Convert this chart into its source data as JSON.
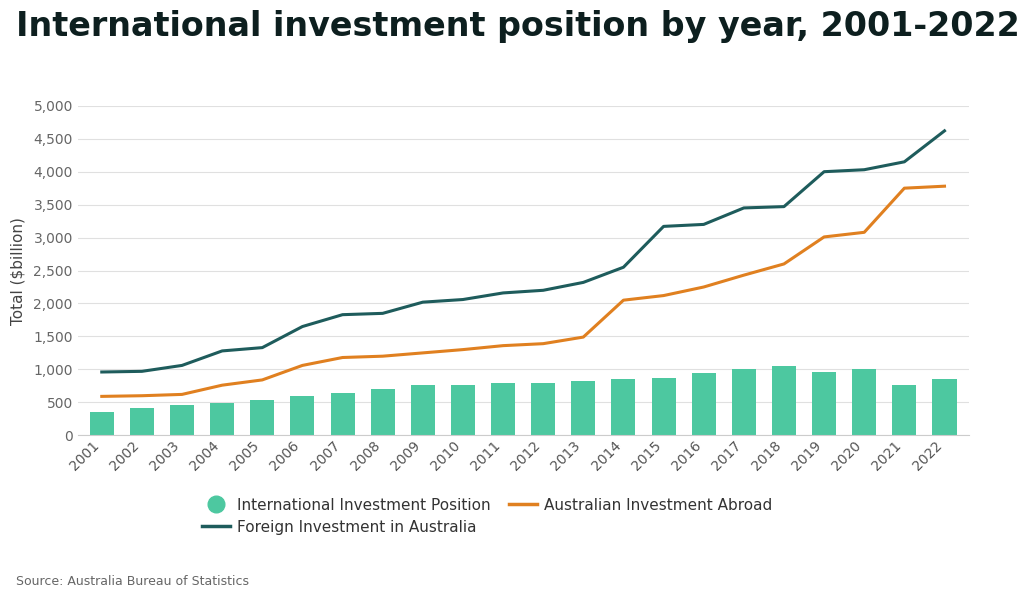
{
  "title": "International investment position by year, 2001-2022",
  "ylabel": "Total ($billion)",
  "source": "Source: Australia Bureau of Statistics",
  "background_color": "#ffffff",
  "years": [
    2001,
    2002,
    2003,
    2004,
    2005,
    2006,
    2007,
    2008,
    2009,
    2010,
    2011,
    2012,
    2013,
    2014,
    2015,
    2016,
    2017,
    2018,
    2019,
    2020,
    2021,
    2022
  ],
  "iip_bars": [
    350,
    420,
    460,
    490,
    540,
    590,
    640,
    700,
    760,
    760,
    790,
    800,
    830,
    850,
    870,
    950,
    1000,
    1050,
    960,
    1000,
    770,
    860
  ],
  "foreign_inv_australia": [
    960,
    970,
    1060,
    1280,
    1330,
    1650,
    1830,
    1850,
    2020,
    2060,
    2160,
    2200,
    2320,
    2550,
    3170,
    3200,
    3450,
    3470,
    4000,
    4030,
    4150,
    4620
  ],
  "australian_inv_abroad": [
    590,
    600,
    620,
    760,
    840,
    1060,
    1180,
    1200,
    1250,
    1300,
    1360,
    1390,
    1490,
    2050,
    2120,
    2250,
    2430,
    2600,
    3010,
    3080,
    3750,
    3780
  ],
  "bar_color": "#4dc8a0",
  "line_color_foreign": "#1e5c5c",
  "line_color_aus_abroad": "#e08020",
  "ylim": [
    0,
    5000
  ],
  "yticks": [
    0,
    500,
    1000,
    1500,
    2000,
    2500,
    3000,
    3500,
    4000,
    4500,
    5000
  ],
  "title_fontsize": 24,
  "axis_fontsize": 11,
  "tick_fontsize": 10,
  "legend_fontsize": 11,
  "source_fontsize": 9
}
